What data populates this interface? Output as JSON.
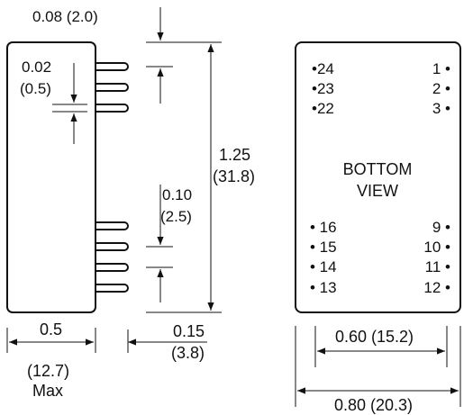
{
  "side_view": {
    "top_offset": "0.08 (2.0)",
    "pin_dia_in": "0.02",
    "pin_dia_mm": "(0.5)",
    "height_in": "1.25",
    "height_mm": "(31.8)",
    "pitch_in": "0.10",
    "pitch_mm": "(2.5)",
    "width_in": "0.5",
    "width_mm": "(12.7)",
    "width_note": "Max",
    "pin_len_in": "0.15",
    "pin_len_mm": "(3.8)"
  },
  "bottom_view": {
    "title_line1": "BOTTOM",
    "title_line2": "VIEW",
    "pins_left_top": [
      "•24",
      "•23",
      "•22"
    ],
    "pins_right_top": [
      "1 •",
      "2 •",
      "3 •"
    ],
    "pins_left_bottom": [
      "• 16",
      "• 15",
      "• 14",
      "• 13"
    ],
    "pins_right_bottom": [
      "9 •",
      "10 •",
      "11 •",
      "12 •"
    ],
    "row_spacing": "0.60 (15.2)",
    "overall_width": "0.80 (20.3)"
  }
}
